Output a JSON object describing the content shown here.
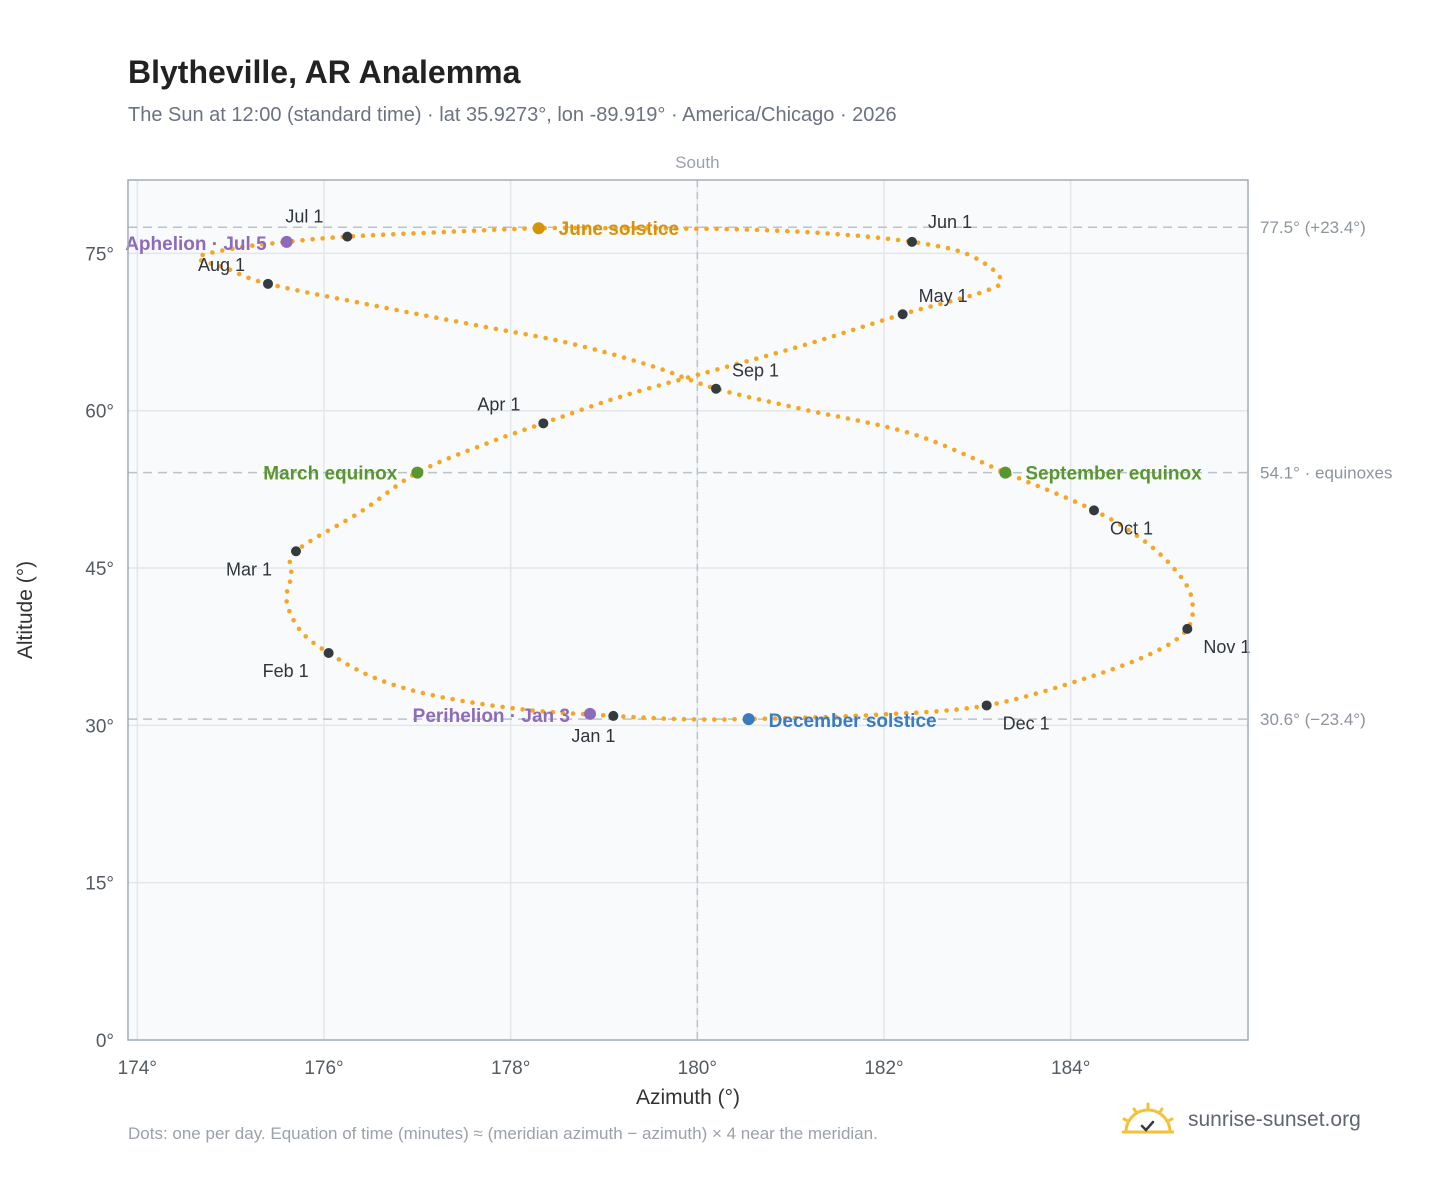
{
  "title": "Blytheville, AR Analemma",
  "subtitle": "The Sun at 12:00 (standard time) · lat 35.9273°, lon -89.919° · America/Chicago · 2026",
  "footnote": "Dots: one per day. Equation of time (minutes) ≈ (meridian azimuth − azimuth) × 4 near the meridian.",
  "brand": {
    "name": "sunrise-sunset.org",
    "icon": "sun-logo-icon"
  },
  "colors": {
    "curve": "#f5a623",
    "month_marker": "#333a40",
    "solstice_june": "#d4930a",
    "equinox": "#5a9630",
    "solstice_december": "#3a7bbf",
    "apsis": "#8e6bb8",
    "plot_bg": "#f8fafc",
    "grid": "#e3e7ec",
    "reference_line": "#b9c3cc"
  },
  "chart_data": {
    "type": "scatter",
    "title": "Blytheville, AR Analemma",
    "xlabel": "Azimuth (°)",
    "ylabel": "Altitude (°)",
    "xlim": [
      173.9,
      185.9
    ],
    "ylim": [
      0,
      82
    ],
    "x_ticks": [
      174,
      176,
      178,
      180,
      182,
      184
    ],
    "x_tick_labels": [
      "174°",
      "176°",
      "178°",
      "180°",
      "182°",
      "184°"
    ],
    "y_ticks": [
      0,
      15,
      30,
      45,
      60,
      75
    ],
    "y_tick_labels": [
      "0°",
      "15°",
      "30°",
      "45°",
      "60°",
      "75°"
    ],
    "grid": true,
    "meridian": {
      "azimuth": 180,
      "label": "South"
    },
    "reference_lines": [
      {
        "altitude": 77.5,
        "label": "77.5° (+23.4°)"
      },
      {
        "altitude": 54.1,
        "label": "54.1° · equinoxes"
      },
      {
        "altitude": 30.6,
        "label": "30.6° (−23.4°)"
      }
    ],
    "series": [
      {
        "points": [
          [
            179.1,
            30.9
          ],
          [
            178.15,
            31.5
          ],
          [
            177.2,
            32.8
          ],
          [
            176.55,
            34.5
          ],
          [
            176.05,
            36.9
          ],
          [
            175.75,
            39.0
          ],
          [
            175.6,
            41.8
          ],
          [
            175.65,
            44.2
          ],
          [
            175.7,
            46.6
          ],
          [
            176.4,
            50.4
          ],
          [
            177.0,
            54.1
          ],
          [
            177.75,
            56.9
          ],
          [
            178.35,
            58.8
          ],
          [
            179.2,
            61.4
          ],
          [
            180.2,
            63.9
          ],
          [
            181.2,
            66.4
          ],
          [
            182.2,
            69.2
          ],
          [
            183.05,
            71.3
          ],
          [
            183.25,
            72.6
          ],
          [
            182.9,
            74.9
          ],
          [
            182.3,
            76.1
          ],
          [
            181.4,
            76.9
          ],
          [
            180.4,
            77.3
          ],
          [
            179.1,
            77.4
          ],
          [
            178.3,
            77.4
          ],
          [
            177.2,
            77.0
          ],
          [
            176.25,
            76.6
          ],
          [
            175.6,
            76.1
          ],
          [
            175.05,
            75.5
          ],
          [
            174.65,
            74.6
          ],
          [
            174.95,
            73.6
          ],
          [
            175.4,
            72.1
          ],
          [
            176.55,
            70.0
          ],
          [
            177.6,
            68.2
          ],
          [
            178.6,
            66.5
          ],
          [
            179.5,
            64.3
          ],
          [
            180.2,
            62.1
          ],
          [
            181.1,
            60.2
          ],
          [
            182.3,
            57.8
          ],
          [
            183.3,
            54.1
          ],
          [
            184.25,
            50.5
          ],
          [
            184.8,
            47.5
          ],
          [
            185.15,
            44.5
          ],
          [
            185.3,
            42.0
          ],
          [
            185.25,
            39.2
          ],
          [
            184.9,
            37.0
          ],
          [
            184.2,
            34.6
          ],
          [
            183.1,
            31.9
          ],
          [
            181.9,
            31.0
          ],
          [
            180.55,
            30.6
          ],
          [
            179.8,
            30.6
          ],
          [
            179.1,
            30.9
          ]
        ]
      }
    ],
    "month_markers": [
      {
        "label": "Jan 1",
        "x": 179.1,
        "y": 30.9
      },
      {
        "label": "Feb 1",
        "x": 176.05,
        "y": 36.9
      },
      {
        "label": "Mar 1",
        "x": 175.7,
        "y": 46.6
      },
      {
        "label": "Apr 1",
        "x": 178.35,
        "y": 58.8
      },
      {
        "label": "May 1",
        "x": 182.2,
        "y": 69.2
      },
      {
        "label": "Jun 1",
        "x": 182.3,
        "y": 76.1
      },
      {
        "label": "Jul 1",
        "x": 176.25,
        "y": 76.6
      },
      {
        "label": "Aug 1",
        "x": 175.4,
        "y": 72.1
      },
      {
        "label": "Sep 1",
        "x": 180.2,
        "y": 62.1
      },
      {
        "label": "Oct 1",
        "x": 184.25,
        "y": 50.5
      },
      {
        "label": "Nov 1",
        "x": 185.25,
        "y": 39.2
      },
      {
        "label": "Dec 1",
        "x": 183.1,
        "y": 31.9
      }
    ],
    "events": [
      {
        "label": "June solstice",
        "x": 178.3,
        "y": 77.4,
        "kind": "solstice_june"
      },
      {
        "label": "March equinox",
        "x": 177.0,
        "y": 54.1,
        "kind": "equinox"
      },
      {
        "label": "September equinox",
        "x": 183.3,
        "y": 54.1,
        "kind": "equinox"
      },
      {
        "label": "December solstice",
        "x": 180.55,
        "y": 30.6,
        "kind": "solstice_december"
      },
      {
        "label": "Aphelion · Jul 5",
        "x": 175.6,
        "y": 76.1,
        "kind": "apsis"
      },
      {
        "label": "Perihelion · Jan 3",
        "x": 178.85,
        "y": 31.1,
        "kind": "apsis"
      }
    ]
  }
}
